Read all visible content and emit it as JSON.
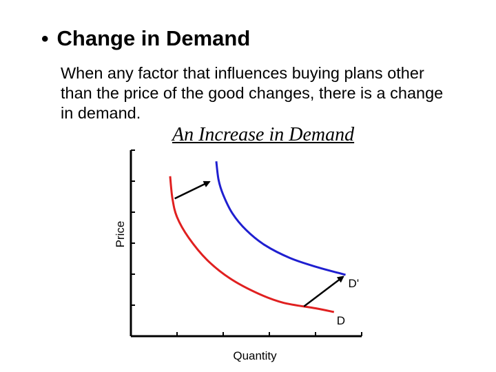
{
  "slide": {
    "bullet": "•",
    "heading": "Change in Demand",
    "body": "When any factor that influences buying plans other than the price of the good changes, there is a change in demand."
  },
  "chart_data": {
    "type": "line",
    "title": "An Increase in Demand",
    "xlabel": "Quantity",
    "ylabel": "Price",
    "xlim": [
      0,
      10
    ],
    "ylim": [
      0,
      10
    ],
    "series": [
      {
        "name": "D",
        "color": "#e02020",
        "points": [
          [
            1.7,
            8.6
          ],
          [
            1.8,
            7.4
          ],
          [
            2.0,
            6.4
          ],
          [
            2.5,
            5.3
          ],
          [
            3.3,
            4.1
          ],
          [
            4.3,
            3.1
          ],
          [
            5.5,
            2.3
          ],
          [
            6.6,
            1.8
          ],
          [
            8.0,
            1.5
          ],
          [
            8.8,
            1.3
          ]
        ]
      },
      {
        "name": "D'",
        "color": "#1f1fd0",
        "points": [
          [
            3.7,
            9.4
          ],
          [
            3.8,
            8.4
          ],
          [
            4.0,
            7.6
          ],
          [
            4.4,
            6.6
          ],
          [
            5.0,
            5.7
          ],
          [
            5.8,
            4.9
          ],
          [
            6.9,
            4.2
          ],
          [
            8.1,
            3.7
          ],
          [
            9.0,
            3.4
          ],
          [
            9.3,
            3.3
          ]
        ]
      }
    ],
    "arrows": [
      {
        "from": [
          1.9,
          7.4
        ],
        "to": [
          3.4,
          8.3
        ],
        "color": "#000000"
      },
      {
        "from": [
          7.5,
          1.6
        ],
        "to": [
          9.2,
          3.2
        ],
        "color": "#000000"
      }
    ],
    "grid": false,
    "x_ticks": 5,
    "y_ticks": 6
  }
}
